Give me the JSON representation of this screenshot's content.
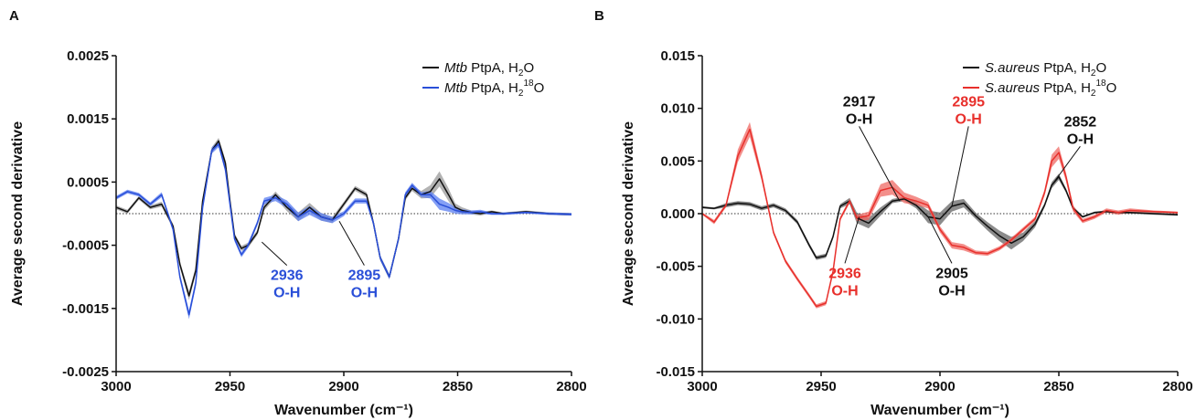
{
  "chart_data": [
    {
      "panel_label": "A",
      "type": "line",
      "xlabel": "Wavenumber (cm⁻¹)",
      "ylabel": "Average second derivative",
      "xlim": [
        3000,
        2800
      ],
      "ylim": [
        -0.0025,
        0.0025
      ],
      "x_ticks": [
        3000,
        2950,
        2900,
        2850,
        2800
      ],
      "x_tick_labels": [
        "3000",
        "2950",
        "2900",
        "2850",
        "2800"
      ],
      "y_ticks": [
        0.0025,
        0.0015,
        0.0005,
        -0.0005,
        -0.0015,
        -0.0025
      ],
      "y_tick_labels": [
        "0.0025",
        "0.0015",
        "0.0005",
        "-0.0005",
        "-0.0015",
        "-0.0025"
      ],
      "zero_line": "dotted",
      "legend_position": "top-right",
      "series": [
        {
          "legend": {
            "italic": "Mtb",
            "text": " PtpA, H",
            "sub": "2",
            "after": "O"
          },
          "color": "#111111",
          "band_color": "#9a9a9a",
          "x": [
            3000,
            2995,
            2990,
            2985,
            2980,
            2975,
            2972,
            2968,
            2965,
            2962,
            2958,
            2955,
            2952,
            2950,
            2948,
            2945,
            2942,
            2938,
            2935,
            2930,
            2925,
            2920,
            2915,
            2910,
            2905,
            2900,
            2895,
            2890,
            2887,
            2884,
            2880,
            2876,
            2873,
            2870,
            2866,
            2862,
            2858,
            2854,
            2851,
            2848,
            2844,
            2840,
            2835,
            2830,
            2820,
            2810,
            2800
          ],
          "y": [
            0.0001,
            3e-05,
            0.00025,
            0.0001,
            0.00015,
            -0.0002,
            -0.0008,
            -0.0013,
            -0.0009,
            0.0002,
            0.001,
            0.00115,
            0.0008,
            0.0002,
            -0.00035,
            -0.00055,
            -0.0005,
            -0.0003,
            0.0001,
            0.0003,
            0.0001,
            -5e-05,
            0.0001,
            -5e-05,
            -0.0001,
            0.00015,
            0.0004,
            0.0003,
            -0.00015,
            -0.0007,
            -0.001,
            -0.0004,
            0.00025,
            0.0004,
            0.0003,
            0.00035,
            0.00055,
            0.0003,
            0.0001,
            5e-05,
            2e-05,
            0.0,
            3e-05,
            0.0,
            3e-05,
            0.0,
            -1e-05
          ],
          "band": [
            3e-05,
            3e-05,
            3e-05,
            3e-05,
            4e-05,
            4e-05,
            5e-05,
            7e-05,
            6e-05,
            5e-05,
            5e-05,
            5e-05,
            5e-05,
            4e-05,
            4e-05,
            4e-05,
            4e-05,
            4e-05,
            5e-05,
            5e-05,
            6e-05,
            7e-05,
            7e-05,
            6e-05,
            5e-05,
            4e-05,
            4e-05,
            4e-05,
            4e-05,
            4e-05,
            4e-05,
            4e-05,
            4e-05,
            4e-05,
            6e-05,
            0.0001,
            0.00012,
            0.0001,
            6e-05,
            5e-05,
            3e-05,
            3e-05,
            2e-05,
            2e-05,
            2e-05,
            2e-05,
            2e-05
          ]
        },
        {
          "legend": {
            "italic": "Mtb",
            "text": " PtpA, H",
            "sub": "2",
            "sup": "18",
            "after": "O"
          },
          "color": "#2a4fd8",
          "band_color": "#5b7ff2",
          "x": [
            3000,
            2995,
            2990,
            2985,
            2980,
            2975,
            2972,
            2968,
            2965,
            2962,
            2958,
            2955,
            2952,
            2950,
            2948,
            2945,
            2942,
            2938,
            2935,
            2930,
            2925,
            2920,
            2915,
            2910,
            2905,
            2900,
            2895,
            2890,
            2887,
            2884,
            2880,
            2876,
            2873,
            2870,
            2866,
            2862,
            2858,
            2854,
            2851,
            2848,
            2844,
            2840,
            2835,
            2830,
            2820,
            2810,
            2800
          ],
          "y": [
            0.00025,
            0.00035,
            0.0003,
            0.00015,
            0.0003,
            -0.00025,
            -0.001,
            -0.0016,
            -0.0011,
            0.0001,
            0.001,
            0.0011,
            0.0007,
            0.00015,
            -0.0004,
            -0.00065,
            -0.0005,
            -0.00015,
            0.0002,
            0.00025,
            0.00015,
            -5e-05,
            5e-05,
            -5e-05,
            -0.0001,
            0.0,
            0.0002,
            0.0002,
            -0.00015,
            -0.0007,
            -0.001,
            -0.0004,
            0.0003,
            0.00045,
            0.0003,
            0.0003,
            0.00015,
            0.0001,
            5e-05,
            3e-05,
            2e-05,
            3e-05,
            0.0,
            0.0,
            2e-05,
            0.0,
            -1e-05
          ],
          "band": [
            3e-05,
            3e-05,
            3e-05,
            3e-05,
            4e-05,
            4e-05,
            5e-05,
            7e-05,
            6e-05,
            5e-05,
            5e-05,
            5e-05,
            5e-05,
            4e-05,
            4e-05,
            4e-05,
            4e-05,
            4e-05,
            5e-05,
            5e-05,
            6e-05,
            7e-05,
            7e-05,
            6e-05,
            5e-05,
            4e-05,
            4e-05,
            4e-05,
            4e-05,
            4e-05,
            4e-05,
            4e-05,
            4e-05,
            4e-05,
            4e-05,
            6e-05,
            9e-05,
            7e-05,
            5e-05,
            4e-05,
            3e-05,
            3e-05,
            2e-05,
            2e-05,
            2e-05,
            2e-05,
            2e-05
          ]
        }
      ],
      "annotations": [
        {
          "lines": [
            "2936",
            "O-H"
          ],
          "color": "#2a4fd8",
          "point": [
            2936,
            -0.00045
          ],
          "text_at": [
            2925,
            -0.00105
          ]
        },
        {
          "lines": [
            "2895",
            "O-H"
          ],
          "color": "#2a4fd8",
          "point": [
            2902,
            -0.00012
          ],
          "text_at": [
            2891,
            -0.00105
          ]
        }
      ]
    },
    {
      "panel_label": "B",
      "type": "line",
      "xlabel": "Wavenumber (cm⁻¹)",
      "ylabel": "Average second derivative",
      "xlim": [
        3000,
        2800
      ],
      "ylim": [
        -0.015,
        0.015
      ],
      "x_ticks": [
        3000,
        2950,
        2900,
        2850,
        2800
      ],
      "x_tick_labels": [
        "3000",
        "2950",
        "2900",
        "2850",
        "2800"
      ],
      "y_ticks": [
        0.015,
        0.01,
        0.005,
        0.0,
        -0.005,
        -0.01,
        -0.015
      ],
      "y_tick_labels": [
        "0.015",
        "0.010",
        "0.005",
        "0.000",
        "-0.005",
        "-0.010",
        "-0.015"
      ],
      "zero_line": "dotted",
      "legend_position": "top-right",
      "series": [
        {
          "legend": {
            "italic": "S.aureus",
            "text": " PtpA, H",
            "sub": "2",
            "after": "O"
          },
          "color": "#111111",
          "band_color": "#666666",
          "x": [
            3000,
            2995,
            2990,
            2985,
            2980,
            2975,
            2970,
            2965,
            2960,
            2955,
            2952,
            2948,
            2945,
            2942,
            2938,
            2935,
            2930,
            2925,
            2920,
            2915,
            2910,
            2905,
            2900,
            2895,
            2890,
            2885,
            2880,
            2875,
            2870,
            2865,
            2860,
            2856,
            2853,
            2850,
            2847,
            2844,
            2840,
            2835,
            2830,
            2825,
            2820,
            2810,
            2800
          ],
          "y": [
            0.0006,
            0.0005,
            0.0008,
            0.001,
            0.0009,
            0.0005,
            0.0008,
            0.0003,
            -0.0008,
            -0.003,
            -0.0042,
            -0.004,
            -0.0022,
            0.0007,
            0.0012,
            -0.0004,
            -0.0009,
            0.0002,
            0.0012,
            0.0014,
            0.0008,
            -0.0003,
            -0.0005,
            0.0007,
            0.001,
            -0.0002,
            -0.0012,
            -0.0021,
            -0.0028,
            -0.0022,
            -0.001,
            0.0008,
            0.0027,
            0.0035,
            0.0022,
            0.0005,
            -0.0003,
            0.0001,
            0.0002,
            0.0001,
            0.0001,
            0.0,
            -0.0001
          ],
          "band": [
            0.0001,
            0.0001,
            0.0002,
            0.0002,
            0.0002,
            0.0002,
            0.0002,
            0.0002,
            0.0002,
            0.0002,
            0.0002,
            0.0002,
            0.0002,
            0.0002,
            0.0003,
            0.0005,
            0.0005,
            0.0004,
            0.0002,
            0.0002,
            0.0003,
            0.0006,
            0.0006,
            0.0005,
            0.0004,
            0.0003,
            0.0004,
            0.0005,
            0.0006,
            0.0004,
            0.0003,
            0.0002,
            0.0003,
            0.0003,
            0.0002,
            0.0002,
            0.0001,
            0.0001,
            0.0001,
            0.0001,
            0.0001,
            0.0001,
            0.0001
          ]
        },
        {
          "legend": {
            "italic": "S.aureus",
            "text": " PtpA, H",
            "sub": "2",
            "sup": "18",
            "after": "O"
          },
          "color": "#e8302c",
          "band_color": "#ef6a64",
          "x": [
            3000,
            2995,
            2990,
            2985,
            2980,
            2975,
            2970,
            2965,
            2960,
            2955,
            2952,
            2948,
            2945,
            2942,
            2938,
            2935,
            2930,
            2925,
            2920,
            2915,
            2910,
            2905,
            2900,
            2895,
            2890,
            2885,
            2880,
            2875,
            2870,
            2865,
            2860,
            2856,
            2853,
            2850,
            2847,
            2844,
            2840,
            2835,
            2830,
            2825,
            2820,
            2810,
            2800
          ],
          "y": [
            0.0,
            -0.0008,
            0.0008,
            0.0055,
            0.008,
            0.0035,
            -0.0018,
            -0.0045,
            -0.0062,
            -0.0078,
            -0.0088,
            -0.0085,
            -0.0055,
            -0.0005,
            0.0012,
            -0.0004,
            -0.0002,
            0.0022,
            0.0025,
            0.0015,
            0.0012,
            0.0008,
            -0.0015,
            -0.003,
            -0.0032,
            -0.0037,
            -0.0038,
            -0.0033,
            -0.0025,
            -0.0015,
            -0.0005,
            0.002,
            0.005,
            0.0058,
            0.0035,
            0.0005,
            -0.0007,
            -0.0003,
            0.0003,
            0.0001,
            0.0003,
            0.0002,
            0.0001
          ],
          "band": [
            0.0001,
            0.0002,
            0.0002,
            0.0006,
            0.0007,
            0.0004,
            0.0002,
            0.0002,
            0.0002,
            0.0002,
            0.0002,
            0.0002,
            0.0002,
            0.0002,
            0.0002,
            0.0003,
            0.0004,
            0.0006,
            0.0007,
            0.0005,
            0.0004,
            0.0003,
            0.0003,
            0.0003,
            0.0003,
            0.0002,
            0.0002,
            0.0002,
            0.0002,
            0.0002,
            0.0002,
            0.0003,
            0.0006,
            0.0006,
            0.0004,
            0.0003,
            0.0002,
            0.0002,
            0.0002,
            0.0002,
            0.0002,
            0.0001,
            0.0001
          ]
        }
      ],
      "annotations": [
        {
          "lines": [
            "2917",
            "O-H"
          ],
          "color": "#111111",
          "point": [
            2917,
            0.0012
          ],
          "text_at": [
            2934,
            0.0102
          ]
        },
        {
          "lines": [
            "2895",
            "O-H"
          ],
          "color": "#e8302c",
          "point": [
            2895,
            0.0007
          ],
          "text_at": [
            2888,
            0.0102
          ]
        },
        {
          "lines": [
            "2852",
            "O-H"
          ],
          "color": "#111111",
          "point": [
            2853,
            0.0027
          ],
          "text_at": [
            2841,
            0.0083
          ]
        },
        {
          "lines": [
            "2936",
            "O-H"
          ],
          "color": "#e8302c",
          "point": [
            2934,
            -0.0003
          ],
          "text_at": [
            2940,
            -0.0061
          ]
        },
        {
          "lines": [
            "2905",
            "O-H"
          ],
          "color": "#111111",
          "point": [
            2905,
            -0.0003
          ],
          "text_at": [
            2895,
            -0.0061
          ]
        }
      ]
    }
  ]
}
